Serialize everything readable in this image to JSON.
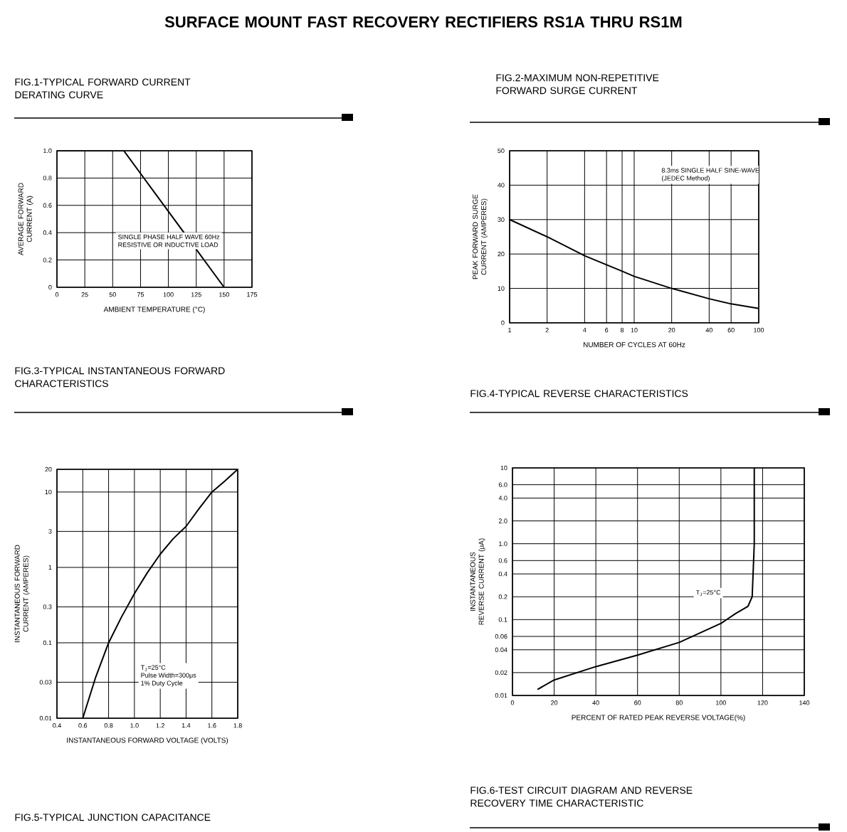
{
  "chart_data": [
    {
      "type": "other",
      "title": "SURFACE MOUNT FAST RECOVERY RECTIFIERS RS1A THRU RS1M"
    },
    {
      "type": "line",
      "title": "FIG.1-TYPICAL FORWARD CURRENT DERATING CURVE",
      "xlabel": "AMBIENT TEMPERATURE (°C)",
      "ylabel": "AVERAGE FORWARD CURRENT (A)",
      "xlim": [
        0,
        175
      ],
      "ylim": [
        0,
        1
      ],
      "xticks": [
        0,
        25,
        50,
        75,
        100,
        125,
        150,
        175
      ],
      "yticks": [
        0,
        0.2,
        0.4,
        0.6,
        0.8,
        {
          "value": 1,
          "label": "1.0"
        }
      ],
      "grid": true,
      "annotations": [
        "SINGLE PHASE HALF WAVE 60Hz",
        "RESISTIVE OR INDUCTIVE LOAD"
      ],
      "series": [
        {
          "color": "#000000",
          "x": [
            0,
            60,
            150
          ],
          "values": [
            1,
            1,
            0
          ]
        }
      ]
    },
    {
      "type": "line",
      "title": "FIG.2-MAXIMUM NON-REPETITIVE FORWARD SURGE CURRENT",
      "xlabel": "NUMBER OF CYCLES AT 60Hz",
      "ylabel": "PEAK FORWARD SURGE CURRENT (AMPERES)",
      "log": "x",
      "xlim": [
        1,
        100
      ],
      "ylim": [
        0,
        50
      ],
      "xticks": [
        1,
        2,
        4,
        6,
        8,
        10,
        20,
        40,
        60,
        100
      ],
      "yticks": [
        0,
        10,
        20,
        30,
        40,
        50
      ],
      "grid": true,
      "annotations": [
        "8.3ms SINGLE HALF SINE-WAVE",
        "(JEDEC Method)"
      ],
      "series": [
        {
          "color": "#000000",
          "x": [
            1,
            2,
            4,
            8,
            10,
            20,
            40,
            60,
            100
          ],
          "values": [
            30,
            25,
            19.5,
            15,
            13.5,
            10,
            7,
            5.5,
            4.2
          ]
        }
      ]
    },
    {
      "type": "line",
      "title": "FIG.3-TYPICAL INSTANTANEOUS FORWARD CHARACTERISTICS",
      "xlabel": "INSTANTANEOUS FORWARD VOLTAGE (VOLTS)",
      "ylabel": "INSTANTANEOUS FORWARD CURRENT (AMPERES)",
      "log": "y",
      "xlim": [
        0.4,
        1.8
      ],
      "ylim": [
        0.01,
        20
      ],
      "xticks": [
        0.4,
        0.6,
        0.8,
        {
          "value": 1,
          "label": "1.0"
        },
        1.2,
        1.4,
        1.6,
        1.8
      ],
      "yticks": [
        0.01,
        0.03,
        0.1,
        0.3,
        1,
        3,
        10,
        20
      ],
      "grid": true,
      "annotations": [
        "T$_{J}$=25°C",
        "Pulse Width=300μs",
        "1% Duty Cycle"
      ],
      "series": [
        {
          "color": "#000000",
          "x": [
            0.6,
            0.7,
            0.8,
            0.9,
            1.0,
            1.1,
            1.2,
            1.3,
            1.4,
            1.5,
            1.6,
            1.7,
            1.8
          ],
          "values": [
            0.01,
            0.035,
            0.1,
            0.22,
            0.45,
            0.85,
            1.5,
            2.4,
            3.5,
            6,
            10,
            14,
            20
          ]
        }
      ]
    },
    {
      "type": "line",
      "title": "FIG.4-TYPICAL REVERSE CHARACTERISTICS",
      "xlabel": "PERCENT OF RATED PEAK REVERSE VOLTAGE(%)",
      "ylabel": "INSTANTANEOUS REVERSE CURRENT (μA)",
      "log": "y",
      "xlim": [
        0,
        140
      ],
      "ylim": [
        0.01,
        10
      ],
      "xticks": [
        0,
        20,
        40,
        60,
        80,
        100,
        120,
        140
      ],
      "yticks": [
        0.01,
        0.02,
        0.04,
        0.06,
        0.1,
        0.2,
        0.4,
        0.6,
        {
          "value": 1,
          "label": "1.0"
        },
        {
          "value": 2,
          "label": "2.0"
        },
        {
          "value": 4,
          "label": "4.0"
        },
        {
          "value": 6,
          "label": "6.0"
        },
        10
      ],
      "grid": true,
      "annotations": [
        "T$_{J}$=25°C"
      ],
      "series": [
        {
          "color": "#000000",
          "x": [
            12,
            20,
            40,
            60,
            80,
            100,
            107,
            113,
            115,
            116,
            116
          ],
          "values": [
            0.012,
            0.016,
            0.024,
            0.034,
            0.05,
            0.089,
            0.12,
            0.15,
            0.2,
            1,
            10
          ]
        }
      ]
    },
    {
      "type": "other",
      "title": "FIG.5-TYPICAL JUNCTION CAPACITANCE"
    },
    {
      "type": "other",
      "title": "FIG.6-TEST CIRCUIT DIAGRAM AND REVERSE RECOVERY TIME CHARACTERISTIC"
    }
  ]
}
